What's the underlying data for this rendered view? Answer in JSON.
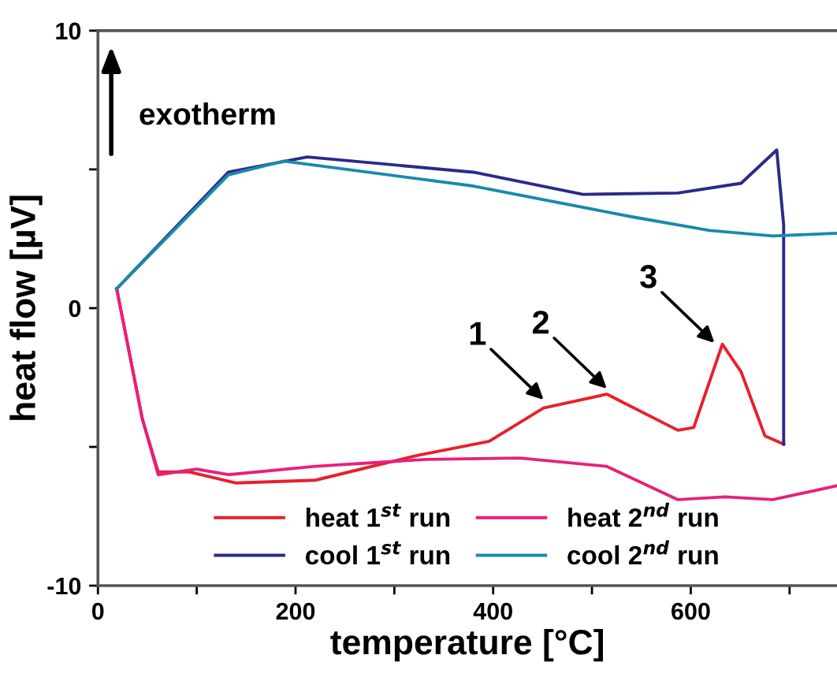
{
  "chart_data": {
    "type": "line",
    "xlabel": "temperature [°C]",
    "ylabel": "heat flow [µV]",
    "xlim": [
      0,
      748
    ],
    "ylim": [
      -10,
      10
    ],
    "xticks": [
      0,
      {
        "value": 100,
        "label": null
      },
      200,
      {
        "value": 300,
        "label": null
      },
      400,
      {
        "value": 500,
        "label": null
      },
      600,
      {
        "value": 700,
        "label": null
      }
    ],
    "yticks": [
      -10,
      {
        "value": -5,
        "label": null
      },
      0,
      {
        "value": 5,
        "label": null
      },
      10
    ],
    "grid": false,
    "legend": "bottom",
    "marker": "none",
    "line_style": "solid",
    "annotations": [
      "exotherm",
      {
        "text": "1",
        "x": 451,
        "y": -3.3
      },
      {
        "text": "2",
        "x": 515,
        "y": -2.9
      },
      {
        "text": "3",
        "x": 624,
        "y": -1.25
      }
    ],
    "series": [
      {
        "name": "heat 1$^{st}$ run",
        "color": "#e8202a",
        "x": [
          19,
          45,
          61,
          92,
          140,
          220,
          324,
          396,
          451,
          515,
          587,
          603,
          632,
          651,
          675,
          694
        ],
        "values": [
          0.7,
          -4.0,
          -5.9,
          -5.9,
          -6.3,
          -6.2,
          -5.3,
          -4.8,
          -3.6,
          -3.1,
          -4.4,
          -4.3,
          -1.3,
          -2.3,
          -4.6,
          -4.9
        ]
      },
      {
        "name": "heat 2$^{nd}$ run",
        "color": "#e8207a",
        "x": [
          19,
          45,
          61,
          100,
          132,
          220,
          332,
          427,
          515,
          587,
          635,
          683,
          748
        ],
        "values": [
          0.7,
          -4.0,
          -6.0,
          -5.8,
          -6.0,
          -5.7,
          -5.45,
          -5.4,
          -5.7,
          -6.9,
          -6.8,
          -6.9,
          -6.4
        ]
      },
      {
        "name": "cool 1$^{st}$ run",
        "color": "#2a2a8a",
        "x": [
          19,
          132,
          212,
          380,
          491,
          587,
          651,
          687,
          694,
          694
        ],
        "values": [
          0.7,
          4.9,
          5.45,
          4.9,
          4.1,
          4.15,
          4.5,
          5.7,
          3.0,
          -4.9
        ]
      },
      {
        "name": "cool 2$^{nd}$ run",
        "color": "#1a8aaa",
        "x": [
          19,
          132,
          188,
          380,
          539,
          619,
          683,
          748
        ],
        "values": [
          0.7,
          4.8,
          5.3,
          4.4,
          3.3,
          2.8,
          2.6,
          2.7
        ]
      }
    ]
  }
}
